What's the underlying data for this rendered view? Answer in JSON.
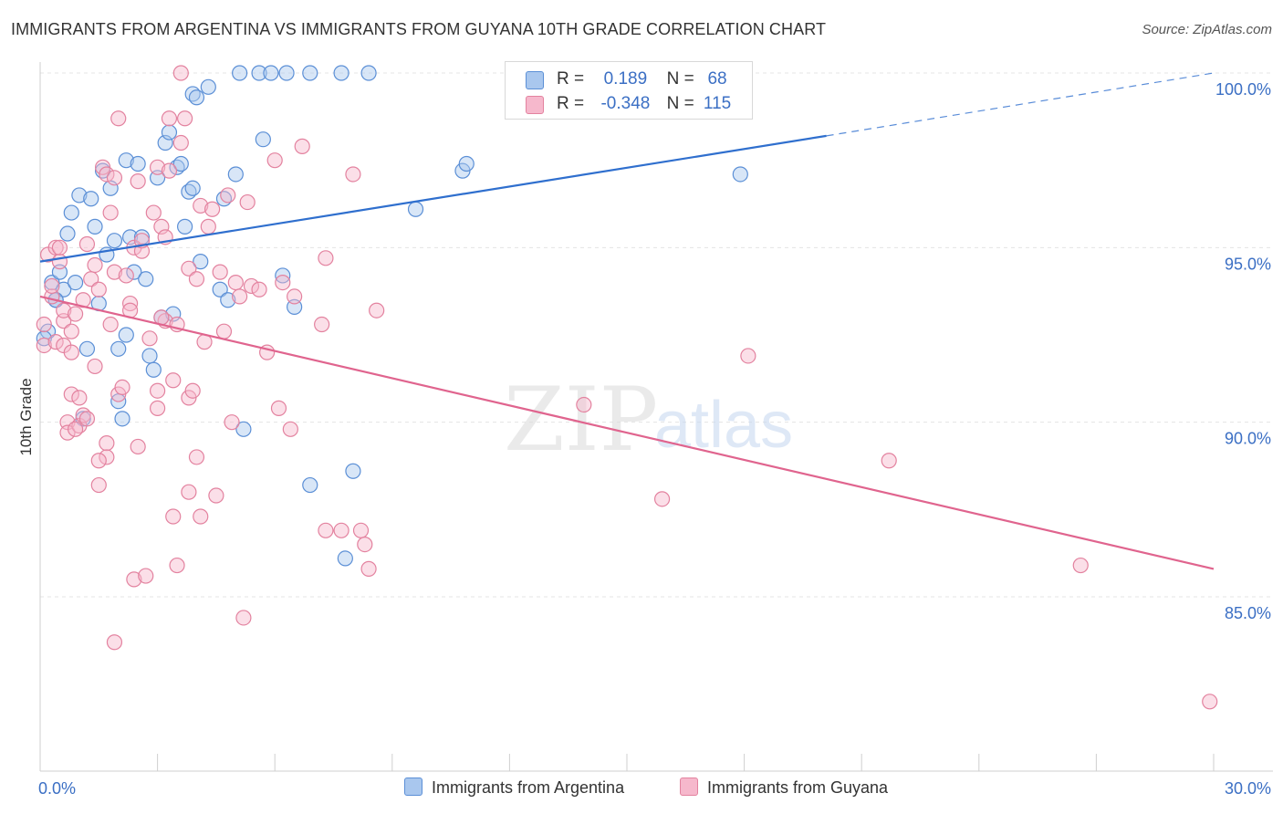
{
  "title": "IMMIGRANTS FROM ARGENTINA VS IMMIGRANTS FROM GUYANA 10TH GRADE CORRELATION CHART",
  "source": "Source: ZipAtlas.com",
  "watermark": {
    "zip": "ZIP",
    "atlas": "atlas"
  },
  "colors": {
    "argentina_fill": "#a9c7ee",
    "argentina_stroke": "#5b8fd6",
    "argentina_line": "#2f6fce",
    "guyana_fill": "#f6b8cc",
    "guyana_stroke": "#e3829f",
    "guyana_line": "#e0648e"
  },
  "legend": {
    "argentina": {
      "r_label": "R =",
      "r_value": "0.189",
      "n_label": "N =",
      "n_value": "68"
    },
    "guyana": {
      "r_label": "R =",
      "r_value": "-0.348",
      "n_label": "N =",
      "n_value": "115"
    }
  },
  "chart_data": {
    "type": "scatter",
    "title": "IMMIGRANTS FROM ARGENTINA VS IMMIGRANTS FROM GUYANA 10TH GRADE CORRELATION CHART",
    "xlabel": "",
    "ylabel": "10th Grade",
    "xlim": [
      0,
      30
    ],
    "ylim": [
      80.5,
      101
    ],
    "x_tick_labels": [
      {
        "value": 0,
        "label": "0.0%"
      },
      {
        "value": 30,
        "label": "30.0%"
      }
    ],
    "y_tick_labels": [
      {
        "value": 100,
        "label": "100.0%"
      },
      {
        "value": 95,
        "label": "95.0%"
      },
      {
        "value": 90,
        "label": "90.0%"
      },
      {
        "value": 85,
        "label": "85.0%"
      }
    ],
    "grid": true,
    "legend_position": "top-center",
    "series": [
      {
        "name": "Immigrants from Argentina",
        "trend": {
          "x": [
            0,
            20.1
          ],
          "y": [
            94.6,
            98.2
          ],
          "dashed_to": [
            30,
            100.0
          ]
        },
        "points": [
          [
            0.2,
            92.6
          ],
          [
            0.3,
            94.0
          ],
          [
            0.4,
            93.5
          ],
          [
            0.5,
            94.3
          ],
          [
            0.6,
            93.8
          ],
          [
            0.7,
            95.4
          ],
          [
            0.8,
            96.0
          ],
          [
            0.9,
            94.0
          ],
          [
            1.0,
            96.5
          ],
          [
            1.2,
            92.1
          ],
          [
            1.3,
            96.4
          ],
          [
            1.4,
            95.6
          ],
          [
            1.5,
            93.4
          ],
          [
            1.6,
            97.2
          ],
          [
            1.7,
            94.8
          ],
          [
            1.8,
            96.7
          ],
          [
            1.9,
            95.2
          ],
          [
            2.0,
            92.1
          ],
          [
            2.0,
            90.6
          ],
          [
            2.2,
            92.5
          ],
          [
            2.2,
            97.5
          ],
          [
            2.3,
            95.3
          ],
          [
            2.4,
            94.3
          ],
          [
            2.5,
            97.4
          ],
          [
            2.6,
            95.3
          ],
          [
            2.7,
            94.1
          ],
          [
            2.8,
            91.9
          ],
          [
            2.9,
            91.5
          ],
          [
            3.0,
            97.0
          ],
          [
            3.1,
            93.0
          ],
          [
            3.2,
            98.0
          ],
          [
            3.3,
            98.3
          ],
          [
            3.4,
            93.1
          ],
          [
            3.5,
            97.3
          ],
          [
            3.6,
            97.4
          ],
          [
            3.7,
            95.6
          ],
          [
            3.8,
            96.6
          ],
          [
            3.9,
            96.7
          ],
          [
            3.9,
            99.4
          ],
          [
            4.0,
            99.3
          ],
          [
            4.1,
            94.6
          ],
          [
            4.3,
            99.6
          ],
          [
            4.6,
            93.8
          ],
          [
            4.7,
            96.4
          ],
          [
            4.8,
            93.5
          ],
          [
            5.0,
            97.1
          ],
          [
            5.1,
            100.0
          ],
          [
            5.2,
            89.8
          ],
          [
            5.6,
            100.0
          ],
          [
            5.7,
            98.1
          ],
          [
            5.9,
            100.0
          ],
          [
            6.2,
            94.2
          ],
          [
            6.3,
            100.0
          ],
          [
            6.5,
            93.3
          ],
          [
            6.9,
            100.0
          ],
          [
            6.9,
            88.2
          ],
          [
            7.7,
            100.0
          ],
          [
            7.8,
            86.1
          ],
          [
            8.0,
            88.6
          ],
          [
            8.4,
            100.0
          ],
          [
            9.6,
            96.1
          ],
          [
            10.8,
            97.2
          ],
          [
            10.9,
            97.4
          ],
          [
            17.9,
            97.1
          ],
          [
            0.1,
            92.4
          ],
          [
            0.4,
            93.5
          ],
          [
            2.1,
            90.1
          ],
          [
            1.1,
            90.1
          ]
        ]
      },
      {
        "name": "Immigrants from Guyana",
        "trend": {
          "x": [
            0,
            30
          ],
          "y": [
            93.6,
            85.8
          ]
        },
        "points": [
          [
            0.1,
            92.2
          ],
          [
            0.2,
            94.8
          ],
          [
            0.3,
            93.6
          ],
          [
            0.4,
            95.0
          ],
          [
            0.4,
            92.3
          ],
          [
            0.5,
            94.6
          ],
          [
            0.6,
            92.9
          ],
          [
            0.6,
            93.2
          ],
          [
            0.7,
            90.0
          ],
          [
            0.7,
            89.7
          ],
          [
            0.8,
            90.8
          ],
          [
            0.8,
            92.6
          ],
          [
            0.9,
            93.1
          ],
          [
            1.0,
            89.9
          ],
          [
            1.0,
            90.7
          ],
          [
            1.1,
            93.5
          ],
          [
            1.1,
            90.2
          ],
          [
            1.2,
            95.1
          ],
          [
            1.2,
            90.1
          ],
          [
            1.3,
            94.1
          ],
          [
            1.4,
            91.6
          ],
          [
            1.4,
            94.5
          ],
          [
            1.5,
            88.2
          ],
          [
            1.5,
            93.8
          ],
          [
            1.6,
            97.3
          ],
          [
            1.7,
            97.1
          ],
          [
            1.7,
            89.4
          ],
          [
            1.7,
            89.0
          ],
          [
            1.8,
            96.0
          ],
          [
            1.8,
            92.8
          ],
          [
            1.9,
            94.3
          ],
          [
            1.9,
            97.0
          ],
          [
            2.0,
            90.8
          ],
          [
            2.0,
            98.7
          ],
          [
            2.1,
            91.0
          ],
          [
            2.2,
            94.2
          ],
          [
            2.3,
            93.4
          ],
          [
            2.3,
            93.2
          ],
          [
            2.4,
            85.5
          ],
          [
            2.4,
            95.0
          ],
          [
            2.5,
            96.9
          ],
          [
            2.5,
            89.3
          ],
          [
            2.6,
            94.9
          ],
          [
            2.6,
            95.2
          ],
          [
            2.8,
            92.4
          ],
          [
            2.9,
            96.0
          ],
          [
            3.0,
            97.3
          ],
          [
            3.0,
            90.9
          ],
          [
            3.0,
            90.4
          ],
          [
            3.1,
            95.6
          ],
          [
            3.2,
            95.3
          ],
          [
            3.2,
            92.9
          ],
          [
            3.3,
            97.2
          ],
          [
            3.3,
            98.7
          ],
          [
            3.4,
            91.2
          ],
          [
            3.5,
            92.8
          ],
          [
            3.5,
            85.9
          ],
          [
            3.6,
            98.0
          ],
          [
            3.6,
            100.0
          ],
          [
            3.7,
            98.7
          ],
          [
            3.8,
            94.4
          ],
          [
            3.8,
            90.7
          ],
          [
            3.9,
            90.9
          ],
          [
            4.0,
            94.1
          ],
          [
            4.0,
            89.0
          ],
          [
            4.1,
            96.2
          ],
          [
            4.1,
            87.3
          ],
          [
            4.2,
            92.3
          ],
          [
            4.3,
            95.6
          ],
          [
            4.4,
            96.1
          ],
          [
            4.5,
            87.9
          ],
          [
            4.6,
            94.3
          ],
          [
            4.7,
            92.6
          ],
          [
            4.8,
            96.5
          ],
          [
            5.0,
            94.0
          ],
          [
            5.1,
            93.6
          ],
          [
            5.2,
            84.4
          ],
          [
            5.3,
            96.3
          ],
          [
            5.4,
            93.9
          ],
          [
            5.6,
            93.8
          ],
          [
            5.8,
            92.0
          ],
          [
            6.0,
            97.5
          ],
          [
            6.1,
            90.4
          ],
          [
            6.2,
            94.0
          ],
          [
            6.4,
            89.8
          ],
          [
            6.5,
            93.6
          ],
          [
            6.7,
            97.9
          ],
          [
            7.2,
            92.8
          ],
          [
            7.3,
            94.7
          ],
          [
            7.3,
            86.9
          ],
          [
            7.7,
            86.9
          ],
          [
            8.0,
            97.1
          ],
          [
            8.2,
            86.9
          ],
          [
            8.3,
            86.5
          ],
          [
            8.4,
            85.8
          ],
          [
            8.6,
            93.2
          ],
          [
            13.9,
            90.5
          ],
          [
            15.9,
            87.8
          ],
          [
            18.1,
            91.9
          ],
          [
            21.7,
            88.9
          ],
          [
            26.6,
            85.9
          ],
          [
            29.9,
            82.0
          ],
          [
            1.9,
            83.7
          ],
          [
            0.1,
            92.8
          ],
          [
            0.3,
            93.9
          ],
          [
            0.5,
            95.0
          ],
          [
            0.6,
            92.2
          ],
          [
            0.8,
            92.0
          ],
          [
            1.5,
            88.9
          ],
          [
            2.7,
            85.6
          ],
          [
            3.4,
            87.3
          ],
          [
            3.8,
            88.0
          ],
          [
            4.9,
            90.0
          ],
          [
            0.9,
            89.8
          ],
          [
            3.1,
            93.0
          ]
        ]
      }
    ]
  },
  "bottom_legend": [
    {
      "label": "Immigrants from Argentina"
    },
    {
      "label": "Immigrants from Guyana"
    }
  ]
}
